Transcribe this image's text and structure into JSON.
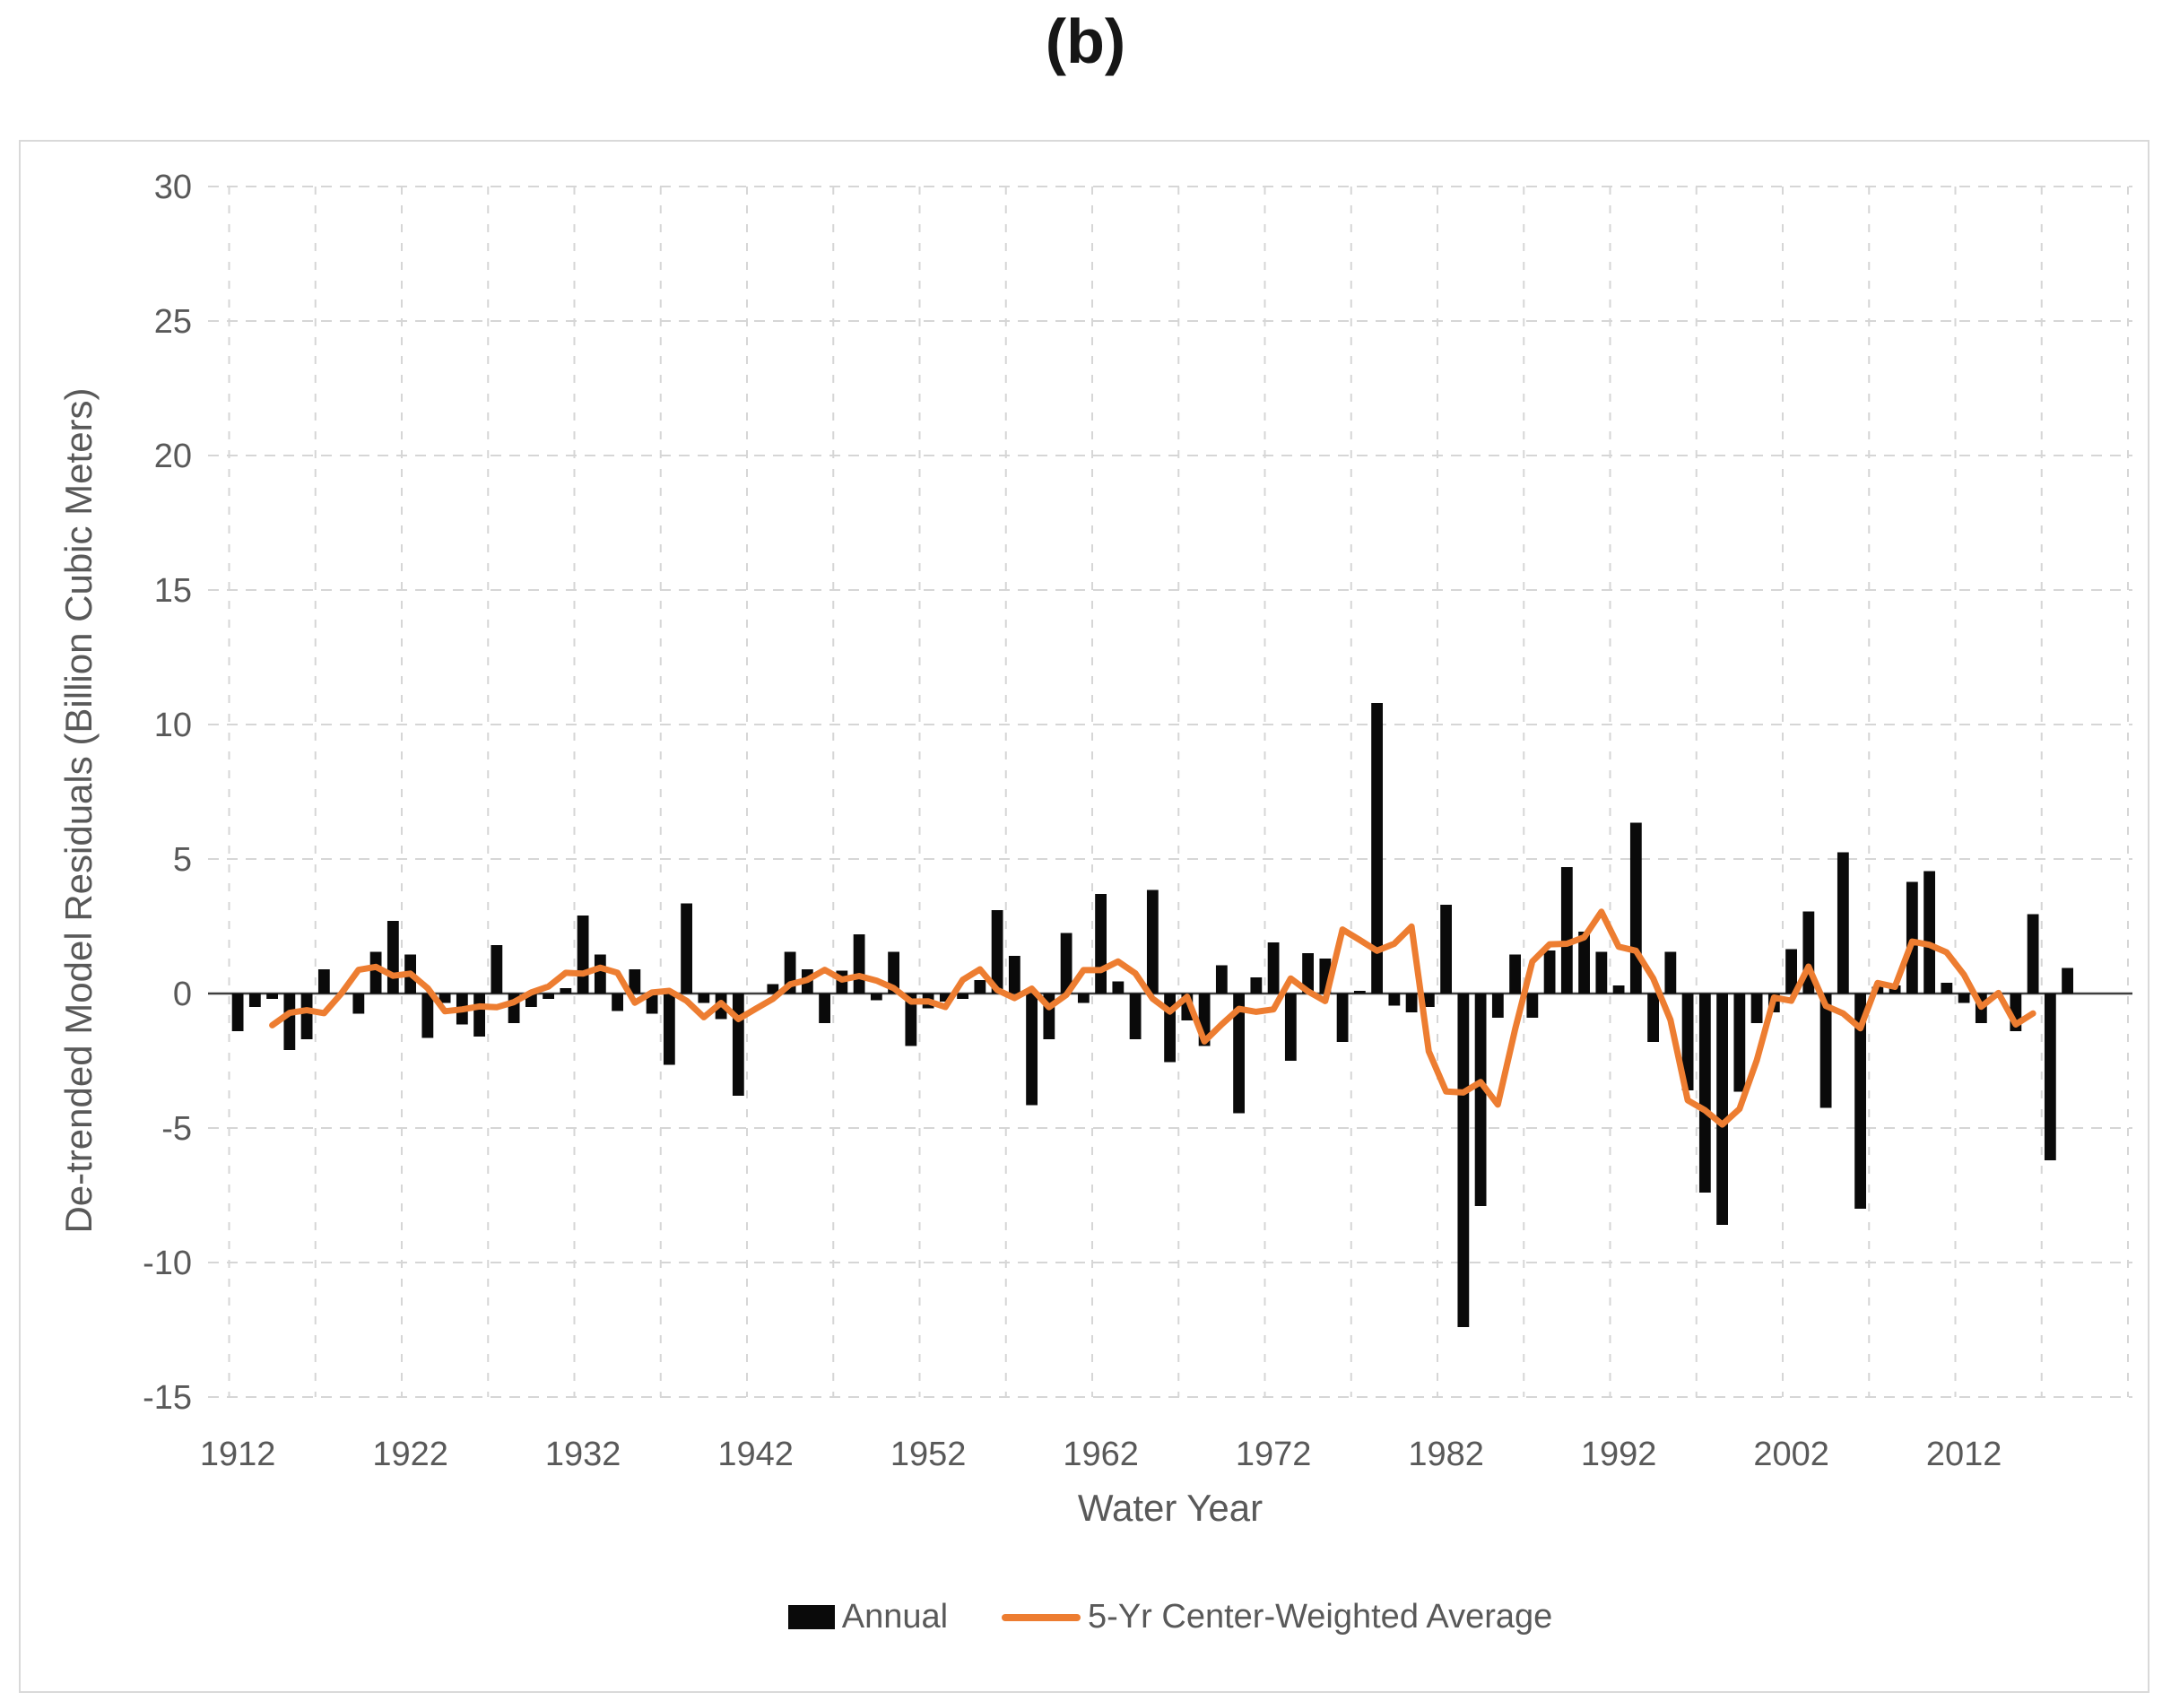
{
  "figure": {
    "title": "(b)"
  },
  "chart_data": {
    "type": "bar",
    "title": "(b)",
    "xlabel": "Water Year",
    "ylabel": "De-trended Model Residuals (Billion Cubic Meters)",
    "ylim": [
      -15,
      30
    ],
    "yticks": [
      30,
      25,
      20,
      15,
      10,
      5,
      0,
      -5,
      -10,
      -15
    ],
    "xticks": [
      1912,
      1922,
      1932,
      1942,
      1952,
      1962,
      1972,
      1982,
      1992,
      2002,
      2012
    ],
    "x_gridlines": {
      "start": 1912,
      "end": 2022,
      "step": 5
    },
    "grid": true,
    "legend_position": "bottom",
    "years_start": 1912,
    "years_end": 2018,
    "series": [
      {
        "name": "Annual",
        "type": "bar",
        "color": "#0a0a0a",
        "values": [
          -1.4,
          -0.5,
          -0.2,
          -2.1,
          -1.7,
          0.9,
          0,
          -0.75,
          1.55,
          2.7,
          1.45,
          -1.65,
          -0.35,
          -1.15,
          -1.6,
          1.8,
          -1.1,
          -0.5,
          -0.2,
          0.2,
          2.9,
          1.45,
          -0.65,
          0.9,
          -0.75,
          -2.65,
          3.35,
          -0.35,
          -0.95,
          -3.8,
          0,
          0.35,
          1.55,
          0.9,
          -1.1,
          0.85,
          2.2,
          -0.25,
          1.55,
          -1.95,
          -0.55,
          -0.3,
          -0.2,
          0.5,
          3.1,
          1.4,
          -4.15,
          -1.7,
          2.25,
          -0.35,
          3.7,
          0.45,
          -1.7,
          3.85,
          -2.55,
          -1.0,
          -1.95,
          1.05,
          -4.45,
          0.6,
          1.9,
          -2.5,
          1.5,
          1.3,
          -1.8,
          0.1,
          10.8,
          -0.45,
          -0.7,
          -0.5,
          3.3,
          -12.4,
          -7.9,
          -0.9,
          1.45,
          -0.9,
          1.6,
          4.7,
          2.3,
          1.55,
          0.3,
          6.35,
          -1.8,
          1.55,
          -3.6,
          -7.4,
          -8.6,
          -3.65,
          -1.1,
          -0.7,
          1.65,
          3.05,
          -4.25,
          5.25,
          -8.0,
          0.25,
          0.3,
          4.15,
          4.55,
          0.4,
          -0.35,
          -1.1,
          0,
          -1.4,
          2.95,
          -6.2,
          0.95
        ]
      },
      {
        "name": "5-Yr Center-Weighted Average",
        "type": "line",
        "color": "#ED7D31",
        "derivation": "centered 5-year moving average of the Annual series (plotted 1914-2016)",
        "window": 5
      }
    ]
  },
  "legend": {
    "items": [
      {
        "label": "Annual",
        "swatch": "black-bar-swatch"
      },
      {
        "label": "5-Yr Center-Weighted Average",
        "swatch": "orange-line-swatch"
      }
    ]
  },
  "colors": {
    "bar": "#0a0a0a",
    "line": "#ED7D31",
    "gridline": "#d6d6d6",
    "zero_line": "#3f3f3f",
    "axis_text": "#595959",
    "figure_border": "#d9d9d9",
    "background": "#ffffff"
  }
}
